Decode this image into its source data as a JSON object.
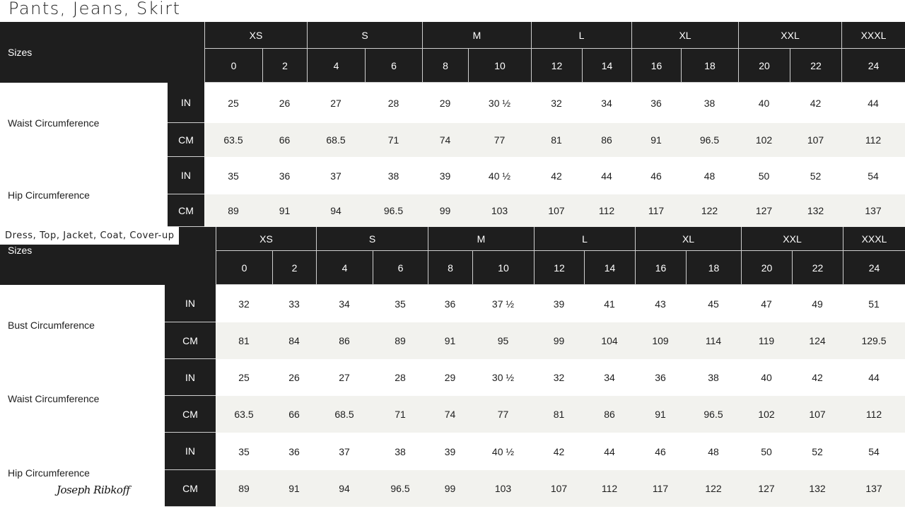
{
  "title": "Pants, Jeans, Skirt",
  "tables": [
    {
      "sizes_label": "Sizes",
      "groups": [
        "XS",
        "S",
        "M",
        "L",
        "XL",
        "XXL",
        "XXXL"
      ],
      "sizes": [
        "0",
        "2",
        "4",
        "6",
        "8",
        "10",
        "12",
        "14",
        "16",
        "18",
        "20",
        "22",
        "24"
      ],
      "measures": [
        {
          "label": "Waist Circumference",
          "rows": [
            {
              "unit": "IN",
              "values": [
                "25",
                "26",
                "27",
                "28",
                "29",
                "30 ½",
                "32",
                "34",
                "36",
                "38",
                "40",
                "42",
                "44"
              ]
            },
            {
              "unit": "CM",
              "values": [
                "63.5",
                "66",
                "68.5",
                "71",
                "74",
                "77",
                "81",
                "86",
                "91",
                "96.5",
                "102",
                "107",
                "112"
              ]
            }
          ]
        },
        {
          "label": "Hip Circumference",
          "rows": [
            {
              "unit": "IN",
              "values": [
                "35",
                "36",
                "37",
                "38",
                "39",
                "40 ½",
                "42",
                "44",
                "46",
                "48",
                "50",
                "52",
                "54"
              ]
            },
            {
              "unit": "CM",
              "values": [
                "89",
                "91",
                "94",
                "96.5",
                "99",
                "103",
                "107",
                "112",
                "117",
                "122",
                "127",
                "132",
                "137"
              ]
            }
          ]
        }
      ]
    },
    {
      "section_title": "Dress, Top, Jacket, Coat, Cover-up",
      "sizes_label": "Sizes",
      "groups": [
        "XS",
        "S",
        "M",
        "L",
        "XL",
        "XXL",
        "XXXL"
      ],
      "sizes": [
        "0",
        "2",
        "4",
        "6",
        "8",
        "10",
        "12",
        "14",
        "16",
        "18",
        "20",
        "22",
        "24"
      ],
      "measures": [
        {
          "label": "Bust Circumference",
          "rows": [
            {
              "unit": "IN",
              "values": [
                "32",
                "33",
                "34",
                "35",
                "36",
                "37 ½",
                "39",
                "41",
                "43",
                "45",
                "47",
                "49",
                "51"
              ]
            },
            {
              "unit": "CM",
              "values": [
                "81",
                "84",
                "86",
                "89",
                "91",
                "95",
                "99",
                "104",
                "109",
                "114",
                "119",
                "124",
                "129.5"
              ]
            }
          ]
        },
        {
          "label": "Waist Circumference",
          "rows": [
            {
              "unit": "IN",
              "values": [
                "25",
                "26",
                "27",
                "28",
                "29",
                "30 ½",
                "32",
                "34",
                "36",
                "38",
                "40",
                "42",
                "44"
              ]
            },
            {
              "unit": "CM",
              "values": [
                "63.5",
                "66",
                "68.5",
                "71",
                "74",
                "77",
                "81",
                "86",
                "91",
                "96.5",
                "102",
                "107",
                "112"
              ]
            }
          ]
        },
        {
          "label": "Hip Circumference",
          "rows": [
            {
              "unit": "IN",
              "values": [
                "35",
                "36",
                "37",
                "38",
                "39",
                "40 ½",
                "42",
                "44",
                "46",
                "48",
                "50",
                "52",
                "54"
              ]
            },
            {
              "unit": "CM",
              "values": [
                "89",
                "91",
                "94",
                "96.5",
                "99",
                "103",
                "107",
                "112",
                "117",
                "122",
                "127",
                "132",
                "137"
              ]
            }
          ]
        }
      ]
    }
  ],
  "brand_signature": "Joseph Ribkoff"
}
